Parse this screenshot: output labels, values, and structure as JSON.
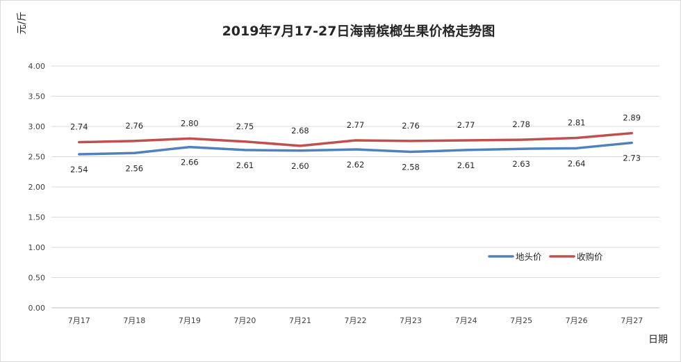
{
  "chart_data": {
    "type": "line",
    "title": "2019年7月17-27日海南槟榔生果价格走势图",
    "ylabel": "元/斤",
    "xlabel": "日期",
    "categories": [
      "7月17",
      "7月18",
      "7月19",
      "7月20",
      "7月21",
      "7月22",
      "7月23",
      "7月24",
      "7月25",
      "7月26",
      "7月27"
    ],
    "ylim": [
      0,
      4
    ],
    "y_ticks": [
      "0.00",
      "0.50",
      "1.00",
      "1.50",
      "2.00",
      "2.50",
      "3.00",
      "3.50",
      "4.00"
    ],
    "grid": true,
    "legend_position": "right, inside plot",
    "series": [
      {
        "name": "地头价",
        "color": "#4f81bd",
        "values": [
          2.54,
          2.56,
          2.66,
          2.61,
          2.6,
          2.62,
          2.58,
          2.61,
          2.63,
          2.64,
          2.73
        ],
        "labels": [
          "2.54",
          "2.56",
          "2.66",
          "2.61",
          "2.60",
          "2.62",
          "2.58",
          "2.61",
          "2.63",
          "2.64",
          "2.73"
        ],
        "label_position": "below"
      },
      {
        "name": "收购价",
        "color": "#c0504d",
        "values": [
          2.74,
          2.76,
          2.8,
          2.75,
          2.68,
          2.77,
          2.76,
          2.77,
          2.78,
          2.81,
          2.89
        ],
        "labels": [
          "2.74",
          "2.76",
          "2.80",
          "2.75",
          "2.68",
          "2.77",
          "2.76",
          "2.77",
          "2.78",
          "2.81",
          "2.89"
        ],
        "label_position": "above"
      }
    ]
  }
}
